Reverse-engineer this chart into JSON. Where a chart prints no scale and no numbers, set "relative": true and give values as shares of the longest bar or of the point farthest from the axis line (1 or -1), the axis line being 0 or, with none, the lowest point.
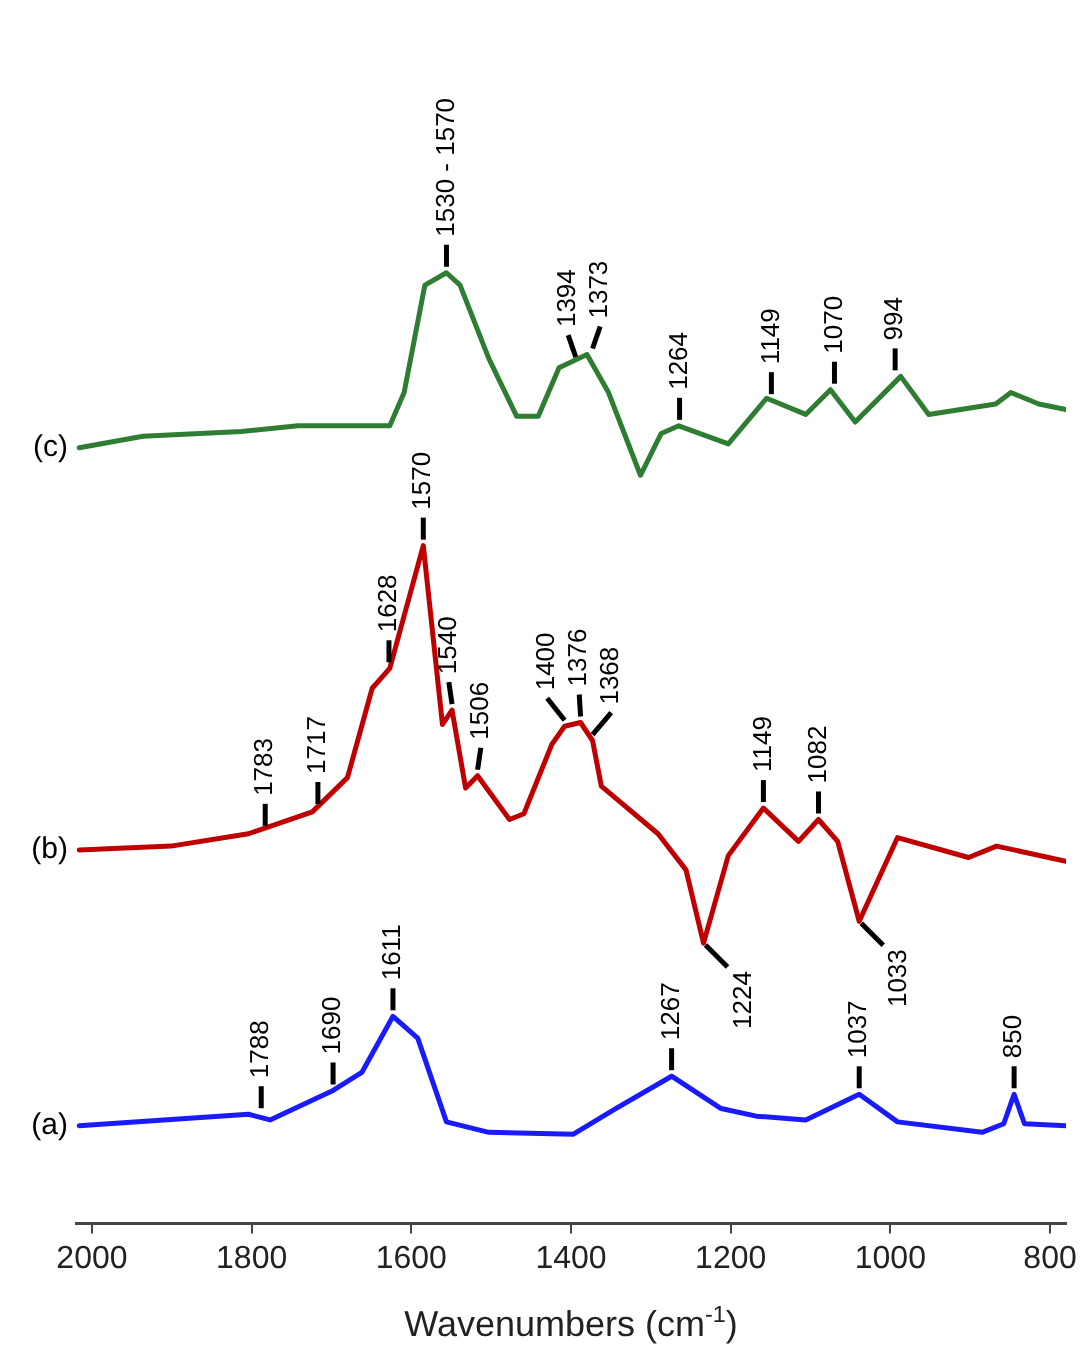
{
  "chart_data": {
    "type": "line",
    "relative": true,
    "xlabel": "Wavenumbers (cm$^{-1}$)",
    "xlim": [
      2020,
      780
    ],
    "xticks": [
      2000,
      1800,
      1600,
      1400,
      1200,
      1000,
      800
    ],
    "grid": false,
    "legend": false,
    "marker": "none",
    "line_style": "solid",
    "tick_labels": "x",
    "series": [
      {
        "name": "(c)",
        "color": "#2e7d32",
        "x": [
          2016,
          1936,
          1813,
          1742,
          1627,
          1609,
          1583,
          1556,
          1539,
          1503,
          1468,
          1441,
          1415,
          1380,
          1353,
          1313,
          1287,
          1265,
          1203,
          1155,
          1106,
          1075,
          1044,
          987,
          952,
          868,
          849,
          814,
          780
        ],
        "values": [
          0.816,
          0.828,
          0.833,
          0.839,
          0.839,
          0.874,
          0.987,
          1,
          0.987,
          0.91,
          0.849,
          0.849,
          0.9,
          0.914,
          0.874,
          0.787,
          0.831,
          0.839,
          0.82,
          0.868,
          0.851,
          0.877,
          0.843,
          0.891,
          0.851,
          0.862,
          0.874,
          0.862,
          0.856
        ]
      },
      {
        "name": "(b)",
        "color": "#c00000",
        "x": [
          2016,
          1901,
          1804,
          1724,
          1680,
          1649,
          1627,
          1585,
          1561,
          1549,
          1532,
          1517,
          1477,
          1459,
          1424,
          1408,
          1388,
          1373,
          1362,
          1291,
          1256,
          1234,
          1203,
          1159,
          1115,
          1090,
          1066,
          1039,
          991,
          902,
          867,
          780
        ],
        "values": [
          0.393,
          0.397,
          0.41,
          0.433,
          0.469,
          0.563,
          0.584,
          0.713,
          0.525,
          0.54,
          0.458,
          0.471,
          0.425,
          0.431,
          0.504,
          0.523,
          0.527,
          0.508,
          0.46,
          0.41,
          0.372,
          0.295,
          0.387,
          0.437,
          0.402,
          0.425,
          0.402,
          0.318,
          0.406,
          0.385,
          0.397,
          0.381
        ]
      },
      {
        "name": "(a)",
        "color": "#1a1aff",
        "x": [
          2016,
          1804,
          1777,
          1698,
          1662,
          1623,
          1592,
          1556,
          1503,
          1397,
          1344,
          1274,
          1212,
          1168,
          1106,
          1039,
          991,
          885,
          858,
          845,
          832,
          780
        ],
        "values": [
          0.103,
          0.115,
          0.109,
          0.14,
          0.159,
          0.218,
          0.195,
          0.107,
          0.096,
          0.094,
          0.121,
          0.155,
          0.121,
          0.113,
          0.109,
          0.136,
          0.107,
          0.096,
          0.105,
          0.136,
          0.105,
          0.103
        ]
      }
    ],
    "annotations": [
      {
        "text": "1530 - 1570",
        "x": 1556,
        "y": 1
      },
      {
        "text": "1394",
        "x": 1394,
        "y": 0.905
      },
      {
        "text": "1373",
        "x": 1373,
        "y": 0.914
      },
      {
        "text": "1264",
        "x": 1264,
        "y": 0.839
      },
      {
        "text": "1149",
        "x": 1149,
        "y": 0.866
      },
      {
        "text": "1070",
        "x": 1070,
        "y": 0.877
      },
      {
        "text": "994",
        "x": 994,
        "y": 0.891
      },
      {
        "text": "1783",
        "x": 1783,
        "y": 0.412
      },
      {
        "text": "1717",
        "x": 1717,
        "y": 0.435
      },
      {
        "text": "1628",
        "x": 1628,
        "y": 0.584
      },
      {
        "text": "1570",
        "x": 1585,
        "y": 0.713
      },
      {
        "text": "1540",
        "x": 1549,
        "y": 0.54
      },
      {
        "text": "1506",
        "x": 1517,
        "y": 0.471
      },
      {
        "text": "1400",
        "x": 1408,
        "y": 0.523
      },
      {
        "text": "1376",
        "x": 1388,
        "y": 0.527
      },
      {
        "text": "1368",
        "x": 1373,
        "y": 0.508
      },
      {
        "text": "1149",
        "x": 1159,
        "y": 0.437
      },
      {
        "text": "1082",
        "x": 1090,
        "y": 0.425
      },
      {
        "text": "1224",
        "x": 1234,
        "y": 0.295
      },
      {
        "text": "1033",
        "x": 1039,
        "y": 0.318
      },
      {
        "text": "1788",
        "x": 1788,
        "y": 0.115
      },
      {
        "text": "1690",
        "x": 1698,
        "y": 0.14
      },
      {
        "text": "1611",
        "x": 1623,
        "y": 0.218
      },
      {
        "text": "1267",
        "x": 1274,
        "y": 0.155
      },
      {
        "text": "1037",
        "x": 1039,
        "y": 0.136
      },
      {
        "text": "850",
        "x": 845,
        "y": 0.136
      }
    ]
  }
}
